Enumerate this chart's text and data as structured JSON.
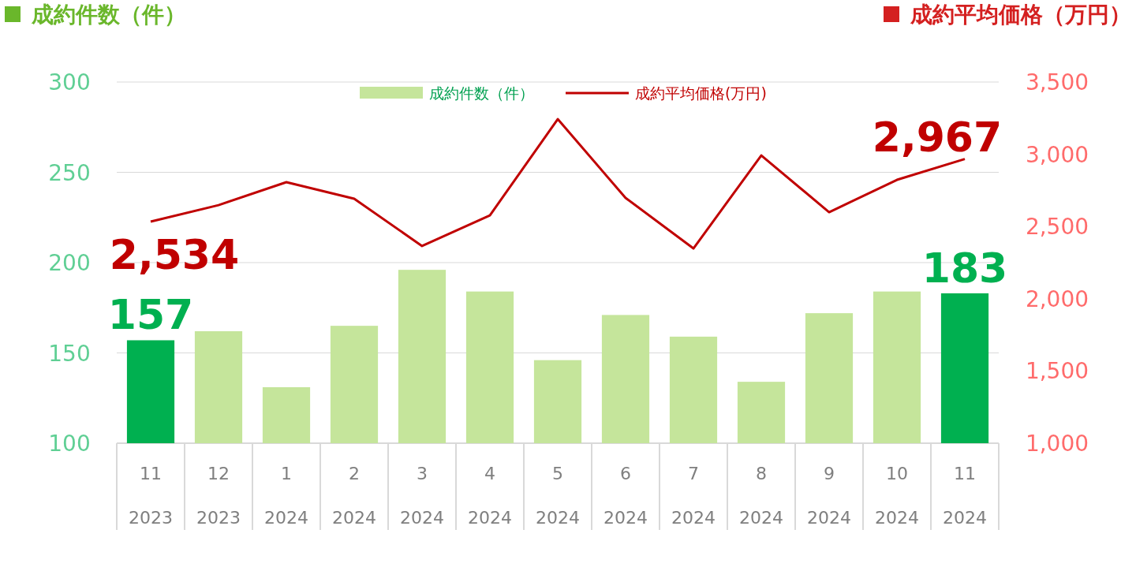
{
  "chart_data": {
    "type": "bar",
    "ylabel": "成約件数（件）",
    "y2label": "成約平均価格（万円）",
    "categories": [
      "11 2023",
      "12 2023",
      "1 2024",
      "2 2024",
      "3 2024",
      "4 2024",
      "5 2024",
      "6 2024",
      "7 2024",
      "8 2024",
      "9 2024",
      "10 2024",
      "11 2024"
    ],
    "series": [
      {
        "name": "成約件数（件）",
        "color": "#c5e59b",
        "colors": [
          "#00b050",
          "#c5e59b",
          "#c5e59b",
          "#c5e59b",
          "#c5e59b",
          "#c5e59b",
          "#c5e59b",
          "#c5e59b",
          "#c5e59b",
          "#c5e59b",
          "#c5e59b",
          "#c5e59b",
          "#00b050"
        ],
        "values": [
          157,
          162,
          131,
          165,
          196,
          184,
          146,
          171,
          159,
          134,
          172,
          184,
          183
        ],
        "value_labels": [
          "157",
          null,
          null,
          null,
          null,
          null,
          null,
          null,
          null,
          null,
          null,
          null,
          "183"
        ]
      },
      {
        "name": "成約平均価格(万円)",
        "type": "line",
        "axis": "y2",
        "color": "#c00000",
        "values": [
          2534,
          2648,
          2807,
          2692,
          2365,
          2577,
          3243,
          2698,
          2348,
          2992,
          2599,
          2823,
          2967
        ],
        "value_labels": [
          "2,534",
          null,
          null,
          null,
          null,
          null,
          null,
          null,
          null,
          null,
          null,
          null,
          "2,967"
        ]
      }
    ],
    "ylim": [
      100,
      300
    ],
    "yticks": [
      100,
      150,
      200,
      250,
      300
    ],
    "y2lim": [
      1000,
      3500
    ],
    "y2ticks": [
      {
        "value": 1000,
        "label": "1,000"
      },
      {
        "value": 1500,
        "label": "1,500"
      },
      {
        "value": 2000,
        "label": "2,000"
      },
      {
        "value": 2500,
        "label": "2,500"
      },
      {
        "value": 3000,
        "label": "3,000"
      },
      {
        "value": 3500,
        "label": "3,500"
      }
    ],
    "grid": "y",
    "legend": "top"
  }
}
